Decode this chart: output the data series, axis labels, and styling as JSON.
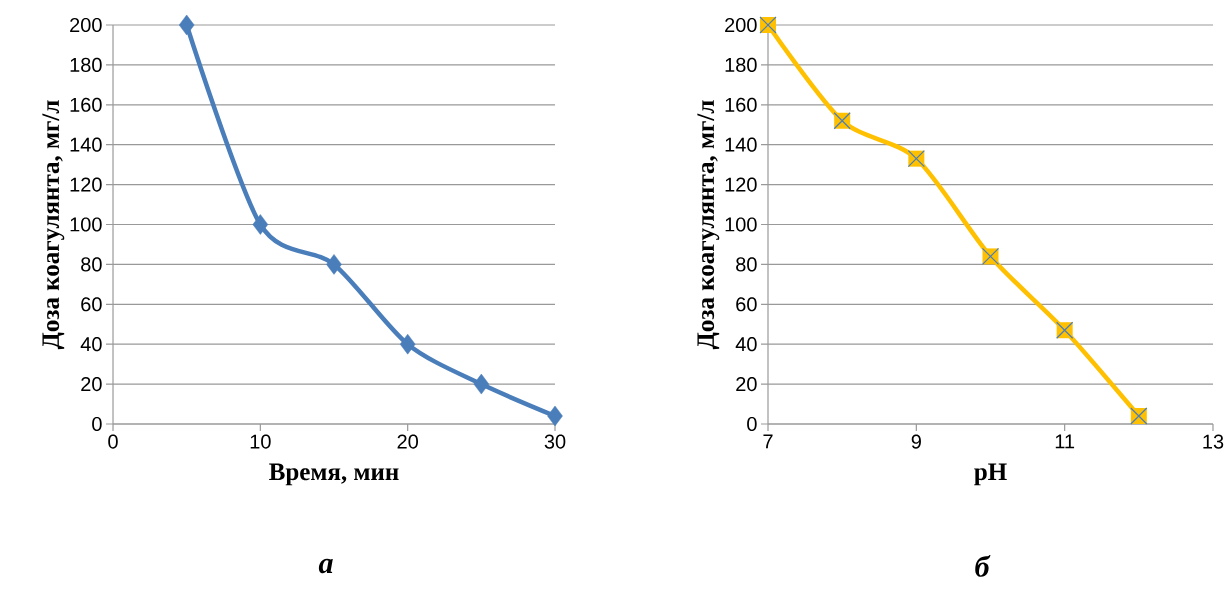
{
  "chart_data": [
    {
      "type": "line",
      "xlabel": "Время, мин",
      "ylabel": "Доза коагулянта, мг/л",
      "annotations": [
        "а"
      ],
      "x": [
        5,
        10,
        15,
        20,
        25,
        30
      ],
      "values": [
        200,
        100,
        80,
        40,
        20,
        4
      ],
      "color": "#4a7ebb",
      "marker": "diamond",
      "xlim": [
        0,
        30
      ],
      "xticks": [
        0,
        10,
        20,
        30
      ],
      "ylim": [
        0,
        200
      ],
      "yticks": [
        0,
        20,
        40,
        60,
        80,
        100,
        120,
        140,
        160,
        180,
        200
      ],
      "grid": "y"
    },
    {
      "type": "line",
      "xlabel": "pH",
      "ylabel": "Доза коагулянта, мг/л",
      "annotations": [
        "б"
      ],
      "x": [
        7,
        8,
        9,
        10,
        11,
        12
      ],
      "values": [
        200,
        152,
        133,
        84,
        47,
        4
      ],
      "color": "#ffc000",
      "marker": "square",
      "xlim": [
        7,
        13
      ],
      "xticks": [
        7,
        9,
        11,
        13
      ],
      "ylim": [
        0,
        200
      ],
      "yticks": [
        0,
        20,
        40,
        60,
        80,
        100,
        120,
        140,
        160,
        180,
        200
      ],
      "grid": "y"
    }
  ]
}
